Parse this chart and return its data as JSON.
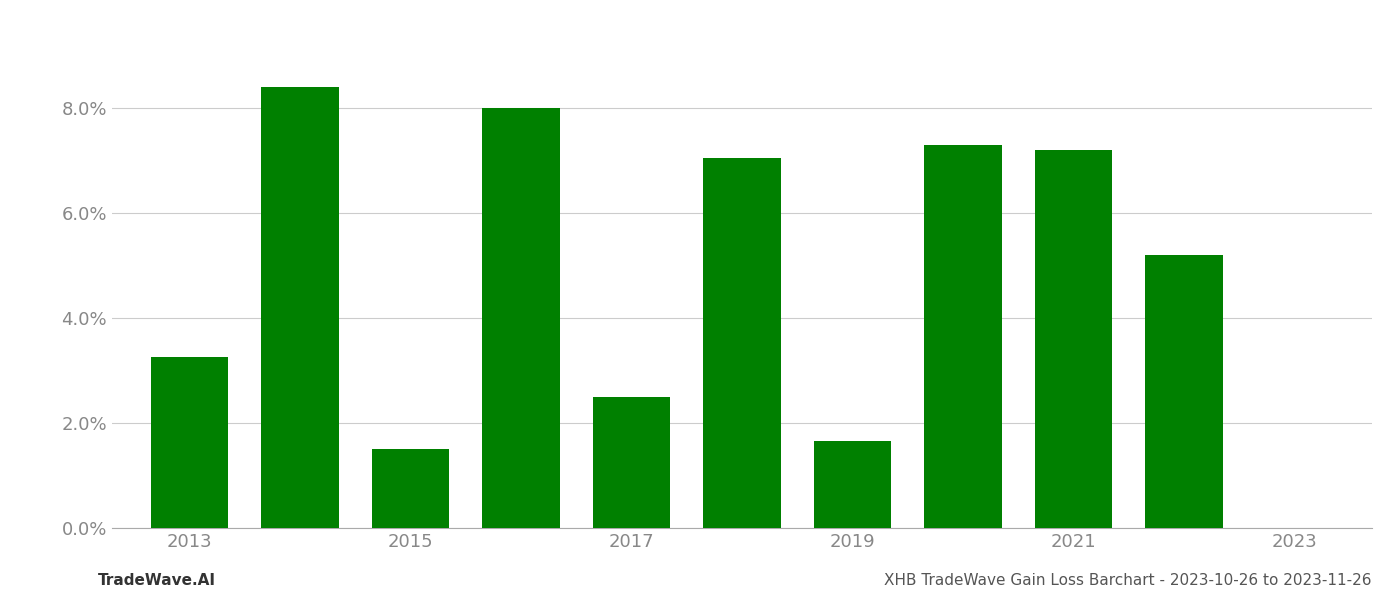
{
  "years": [
    2013,
    2014,
    2015,
    2016,
    2017,
    2018,
    2019,
    2020,
    2021,
    2022,
    2023
  ],
  "values": [
    0.0325,
    0.084,
    0.015,
    0.08,
    0.025,
    0.0705,
    0.0165,
    0.073,
    0.072,
    0.052,
    0.0
  ],
  "bar_color": "#008000",
  "ylim": [
    0,
    0.096
  ],
  "yticks": [
    0.0,
    0.02,
    0.04,
    0.06,
    0.08
  ],
  "xtick_years": [
    2013,
    2015,
    2017,
    2019,
    2021,
    2023
  ],
  "background_color": "#ffffff",
  "grid_color": "#cccccc",
  "tick_color": "#888888",
  "footer_left": "TradeWave.AI",
  "footer_right": "XHB TradeWave Gain Loss Barchart - 2023-10-26 to 2023-11-26",
  "footer_fontsize": 11,
  "axis_fontsize": 13,
  "bar_width": 0.7
}
